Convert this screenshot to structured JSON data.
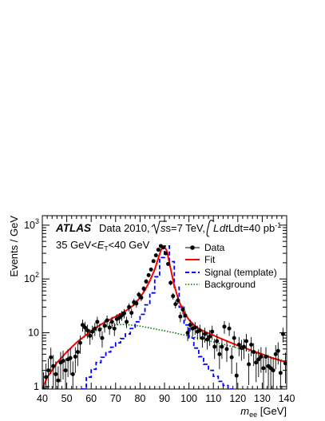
{
  "chart_data": {
    "type": "line",
    "xlabel": "m_ee [GeV]",
    "xlabel_main": "m",
    "xlabel_sub": "ee",
    "xlabel_unit": " [GeV]",
    "ylabel": "Events / GeV",
    "xlim": [
      40,
      140
    ],
    "ylim": [
      0.9,
      1500
    ],
    "yscale": "log",
    "x_ticks": [
      40,
      50,
      60,
      70,
      80,
      90,
      100,
      110,
      120,
      130,
      140
    ],
    "x_tick_labels": [
      "40",
      "50",
      "60",
      "70",
      "80",
      "90",
      "100",
      "110",
      "120",
      "130",
      "140"
    ],
    "y_ticks": [
      1,
      10,
      100,
      1000
    ],
    "y_tick_labels": [
      {
        "base": "1",
        "exp": ""
      },
      {
        "base": "10",
        "exp": ""
      },
      {
        "base": "10",
        "exp": "2"
      },
      {
        "base": "10",
        "exp": "3"
      }
    ],
    "annotations": {
      "experiment": "ATLAS",
      "line1_text": "Data 2010,",
      "sqrt_text": "s=7 TeV,",
      "lumi_text": "Ldt=40 pb",
      "lumi_exp": "-1",
      "cut_left": "35 GeV<",
      "cut_var": "E",
      "cut_sub": "T",
      "cut_right": "<40 GeV"
    },
    "legend_position": "top-right",
    "legend": [
      "Data",
      "Fit",
      "Signal (template)",
      "Background"
    ],
    "colors": {
      "data": "#000000",
      "fit": "#ff0000",
      "signal": "#0000ff",
      "background": "#007a00"
    },
    "series": [
      {
        "name": "Data",
        "kind": "points",
        "x": [
          40.5,
          41.5,
          42.5,
          43.5,
          44.5,
          45.5,
          46.5,
          47.5,
          48.5,
          49.5,
          50.5,
          51.5,
          52.5,
          53.5,
          54.5,
          55.5,
          56.5,
          57.5,
          58.5,
          59.5,
          60.5,
          61.5,
          62.5,
          63.5,
          64.5,
          65.5,
          66.5,
          67.5,
          68.5,
          69.5,
          70.5,
          71.5,
          72.5,
          73.5,
          74.5,
          75.5,
          76.5,
          77.5,
          78.5,
          79.5,
          80.5,
          81.5,
          82.5,
          83.5,
          84.5,
          85.5,
          86.5,
          87.5,
          88.5,
          89.5,
          90.5,
          91.5,
          92.5,
          93.5,
          94.5,
          95.5,
          96.5,
          97.5,
          98.5,
          99.5,
          100.5,
          101.5,
          102.5,
          103.5,
          104.5,
          105.5,
          106.5,
          107.5,
          108.5,
          109.5,
          110.5,
          111.5,
          112.5,
          113.5,
          114.5,
          115.5,
          116.5,
          117.5,
          118.5,
          119.5,
          120.5,
          121.5,
          122.5,
          123.5,
          124.5,
          125.5,
          126.5,
          127.5,
          128.5,
          129.5,
          130.5,
          131.5,
          132.5,
          133.5,
          134.5,
          135.5,
          136.5,
          137.5,
          138.5,
          139.5
        ],
        "y": [
          0.9,
          1.5,
          2.0,
          3.5,
          2.4,
          1.7,
          1.3,
          2.8,
          3.0,
          2.0,
          3.2,
          3.4,
          1.7,
          3.6,
          4.4,
          6.5,
          14.0,
          12.5,
          11.0,
          8.8,
          10.5,
          12.0,
          16.0,
          11.5,
          8.0,
          13.5,
          17.0,
          12.5,
          16.0,
          12.0,
          18.0,
          19.0,
          21.0,
          23.0,
          16.0,
          30.0,
          23.5,
          37.0,
          35.0,
          51.0,
          45.0,
          66.0,
          90.0,
          118.0,
          150.0,
          215.0,
          275.0,
          350.0,
          410.0,
          385.0,
          300.0,
          190.0,
          85.0,
          48.0,
          34.0,
          40.0,
          20.0,
          27.0,
          21.0,
          10.0,
          14.0,
          12.0,
          12.5,
          10.5,
          11.0,
          8.0,
          9.5,
          7.5,
          8.5,
          10.5,
          5.5,
          7.0,
          4.0,
          5.5,
          13.0,
          5.0,
          12.0,
          3.5,
          8.0,
          1.6,
          6.0,
          5.2,
          5.5,
          7.0,
          2.6,
          6.0,
          4.4,
          2.8,
          3.2,
          3.6,
          2.2,
          3.6,
          2.4,
          2.2,
          2.0,
          4.0,
          4.6,
          1.8,
          9.5,
          2.7
        ]
      },
      {
        "name": "Fit",
        "kind": "line",
        "x": [
          40,
          42,
          44,
          46,
          48,
          50,
          52,
          54,
          56,
          58,
          60,
          62,
          64,
          66,
          68,
          70,
          72,
          74,
          76,
          78,
          80,
          82,
          84,
          86,
          88,
          89,
          90,
          91,
          92,
          94,
          96,
          98,
          100,
          102,
          104,
          106,
          108,
          110,
          112,
          114,
          116,
          118,
          120,
          122,
          124,
          126,
          128,
          130,
          132,
          134,
          136,
          138,
          140
        ],
        "y": [
          0.9,
          1.5,
          2.0,
          2.8,
          3.5,
          4.4,
          5.4,
          6.6,
          7.8,
          9.2,
          10.8,
          12.5,
          14.3,
          16.0,
          18.0,
          20.0,
          22.5,
          25.5,
          29.0,
          35.0,
          45.0,
          62.0,
          92.0,
          150.0,
          290.0,
          380.0,
          400.0,
          330.0,
          200.0,
          75.0,
          38.0,
          24.0,
          17.5,
          14.0,
          12.0,
          10.8,
          9.8,
          9.0,
          8.2,
          7.5,
          6.9,
          6.3,
          5.8,
          5.4,
          5.0,
          4.6,
          4.3,
          4.0,
          3.7,
          3.4,
          3.2,
          3.0,
          2.8
        ]
      },
      {
        "name": "Signal (template)",
        "kind": "step",
        "x_edges": [
          56,
          58,
          60,
          62,
          64,
          66,
          68,
          70,
          72,
          74,
          76,
          78,
          80,
          82,
          84,
          86,
          88,
          90,
          92,
          94,
          96,
          98,
          100,
          102,
          104,
          106,
          108,
          110,
          112,
          114,
          116,
          118
        ],
        "y": [
          0.9,
          1.5,
          2.1,
          2.8,
          3.5,
          4.4,
          5.4,
          6.5,
          7.8,
          9.5,
          12.0,
          16.0,
          22.0,
          33.0,
          55.0,
          110.0,
          250.0,
          410.0,
          210.0,
          70.0,
          30.0,
          14.0,
          8.0,
          5.2,
          3.6,
          2.6,
          2.0,
          1.55,
          1.25,
          1.05,
          0.9
        ]
      },
      {
        "name": "Background",
        "kind": "line",
        "x": [
          40,
          42,
          44,
          46,
          48,
          50,
          52,
          54,
          56,
          58,
          60,
          62,
          64,
          66,
          68,
          70,
          72,
          74,
          76,
          78,
          80,
          82,
          84,
          86,
          88,
          90,
          92,
          94,
          96,
          98,
          100,
          102,
          104,
          106,
          108,
          110,
          112,
          114,
          116,
          118,
          120,
          122,
          124,
          126,
          128,
          130,
          132,
          134,
          136,
          138,
          140
        ],
        "y": [
          0.9,
          1.5,
          2.0,
          2.8,
          3.5,
          4.4,
          5.3,
          6.5,
          7.6,
          8.9,
          10.0,
          11.0,
          12.0,
          12.9,
          13.6,
          14.0,
          14.2,
          14.2,
          14.0,
          13.7,
          13.3,
          12.8,
          12.3,
          11.8,
          11.3,
          10.9,
          10.4,
          10.0,
          9.5,
          9.1,
          8.7,
          8.3,
          7.9,
          7.5,
          7.1,
          6.8,
          6.4,
          6.1,
          5.8,
          5.5,
          5.2,
          4.9,
          4.6,
          4.4,
          4.1,
          3.9,
          3.7,
          3.5,
          3.3,
          3.1,
          2.9
        ]
      }
    ]
  }
}
